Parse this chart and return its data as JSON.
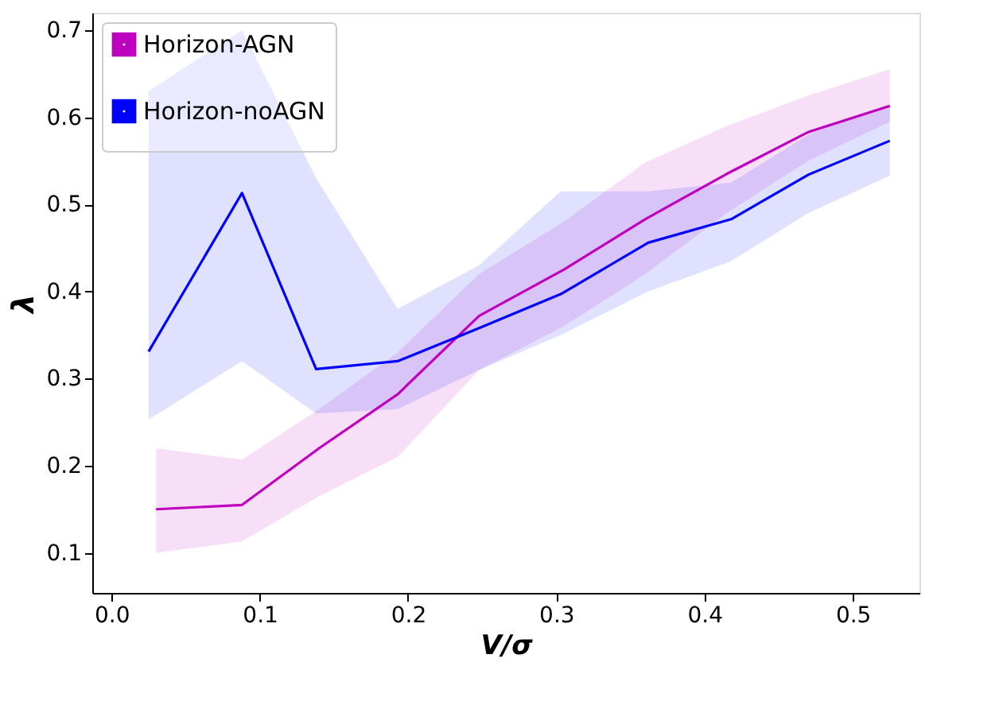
{
  "chart_data": {
    "type": "line",
    "xlabel": "V/σ",
    "ylabel": "λ",
    "xlim": [
      -0.013,
      0.545
    ],
    "ylim": [
      0.054,
      0.72
    ],
    "xticks": [
      {
        "value": 0,
        "label": "0.0"
      },
      0.1,
      0.2,
      0.3,
      0.4,
      0.5
    ],
    "yticks": [
      0.1,
      0.2,
      0.3,
      0.4,
      0.5,
      0.6,
      0.7
    ],
    "grid": false,
    "legend": "top left",
    "series": [
      {
        "name": "Horizon-AGN",
        "color": "#bf00bf",
        "x": [
          0.03,
          0.088,
          0.14,
          0.193,
          0.248,
          0.305,
          0.36,
          0.415,
          0.47,
          0.525
        ],
        "values": [
          0.15,
          0.155,
          0.22,
          0.282,
          0.372,
          0.425,
          0.483,
          0.535,
          0.583,
          0.613
        ],
        "lower": [
          0.1,
          0.113,
          0.165,
          0.21,
          0.31,
          0.36,
          0.42,
          0.49,
          0.55,
          0.595
        ],
        "upper": [
          0.22,
          0.207,
          0.265,
          0.33,
          0.42,
          0.48,
          0.548,
          0.59,
          0.625,
          0.655
        ]
      },
      {
        "name": "Horizon-noAGN",
        "color": "#0000ff",
        "x": [
          0.025,
          0.088,
          0.138,
          0.193,
          0.248,
          0.303,
          0.362,
          0.418,
          0.47,
          0.525
        ],
        "values": [
          0.331,
          0.513,
          0.311,
          0.32,
          0.358,
          0.397,
          0.456,
          0.483,
          0.534,
          0.573
        ],
        "lower": [
          0.253,
          0.32,
          0.26,
          0.265,
          0.31,
          0.35,
          0.4,
          0.435,
          0.49,
          0.533
        ],
        "upper": [
          0.63,
          0.7,
          0.53,
          0.38,
          0.43,
          0.515,
          0.515,
          0.525,
          0.58,
          0.615
        ]
      }
    ]
  }
}
